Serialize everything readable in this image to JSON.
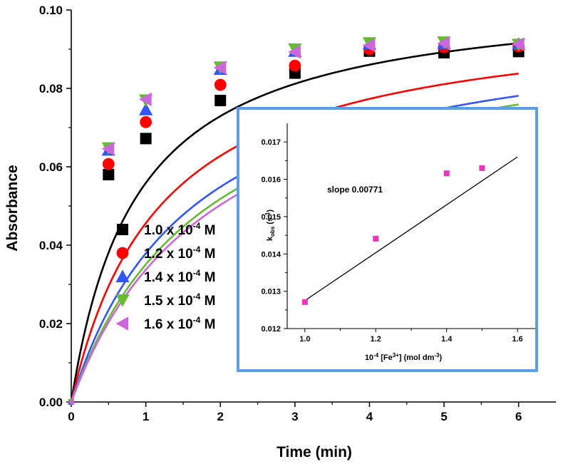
{
  "chart_data": [
    {
      "type": "scatter",
      "xlabel": "Time (min)",
      "ylabel": "Absorbance",
      "xlim": [
        0,
        6.5
      ],
      "ylim": [
        0,
        0.1
      ],
      "x_ticks": [
        "0",
        "1",
        "2",
        "3",
        "4",
        "5",
        "6"
      ],
      "y_ticks": [
        "0.00",
        "0.02",
        "0.04",
        "0.06",
        "0.08",
        "0.10"
      ],
      "legend_position": "middle-left",
      "series": [
        {
          "name_base": "1.0 x 10",
          "name_exp": "-4",
          "name_unit": " M",
          "color": "#000000",
          "marker": "square",
          "x": [
            0,
            0.5,
            1,
            2,
            3,
            4,
            5,
            6
          ],
          "y": [
            0,
            0.058,
            0.0672,
            0.0769,
            0.0839,
            0.0895,
            0.0891,
            0.0894
          ],
          "fit_A": 0.1049,
          "fit_k": 1.14
        },
        {
          "name_base": "1.2 x 10",
          "name_exp": "-4",
          "name_unit": " M",
          "color": "#ff0000",
          "marker": "circle",
          "x": [
            0,
            0.5,
            1,
            2,
            3,
            4,
            5,
            6
          ],
          "y": [
            0,
            0.0607,
            0.0714,
            0.0809,
            0.0858,
            0.09,
            0.0905,
            0.0907
          ],
          "fit_A": 0.1006,
          "fit_k": 0.83
        },
        {
          "name_base": "1.4 x 10",
          "name_exp": "-4",
          "name_unit": " M",
          "color": "#3355ff",
          "marker": "triangle-up",
          "x": [
            0,
            0.5,
            1,
            2,
            3,
            4,
            5,
            6
          ],
          "y": [
            0,
            0.0643,
            0.0746,
            0.0849,
            0.0895,
            0.0914,
            0.0915,
            0.0913
          ],
          "fit_A": 0.0991,
          "fit_k": 0.62
        },
        {
          "name_base": "1.5 x 10",
          "name_exp": "-4",
          "name_unit": " M",
          "color": "#66bb33",
          "marker": "triangle-down",
          "x": [
            0,
            0.5,
            1,
            2,
            3,
            4,
            5,
            6
          ],
          "y": [
            0,
            0.0648,
            0.077,
            0.0854,
            0.09,
            0.0916,
            0.0918,
            0.0912
          ],
          "fit_A": 0.0989,
          "fit_k": 0.55
        },
        {
          "name_base": "1.6 x 10",
          "name_exp": "-4",
          "name_unit": " M",
          "color": "#cc66dd",
          "marker": "triangle-left",
          "x": [
            0,
            0.5,
            1,
            2,
            3,
            4,
            5,
            6
          ],
          "y": [
            0,
            0.0646,
            0.0772,
            0.0853,
            0.0893,
            0.091,
            0.0915,
            0.0913
          ],
          "fit_A": 0.0986,
          "fit_k": 0.52
        }
      ]
    },
    {
      "type": "scatter",
      "xlabel_prefix": "10",
      "xlabel_prefix_exp": "-4",
      "xlabel_mid": " [Fe",
      "xlabel_mid_exp": "3+",
      "xlabel_suffix": "] (mol dm",
      "xlabel_suffix_exp": "-3",
      "xlabel_end": ")",
      "ylabel_main": "k",
      "ylabel_sub": "obs",
      "ylabel_unit": " (s",
      "ylabel_unit_exp": "-1",
      "ylabel_end": ")",
      "xlim": [
        0.95,
        1.65
      ],
      "ylim": [
        0.012,
        0.0175
      ],
      "x_ticks": [
        "1.0",
        "1.2",
        "1.4",
        "1.6"
      ],
      "y_ticks": [
        "0.012",
        "0.013",
        "0.014",
        "0.015",
        "0.016",
        "0.017"
      ],
      "annotation": "slope 0.00771",
      "border_color": "#5aa0e6",
      "series": [
        {
          "color": "#ee33bb",
          "marker": "square",
          "x": [
            1.0,
            1.2,
            1.4,
            1.5
          ],
          "y": [
            0.01271,
            0.01441,
            0.01616,
            0.0163
          ]
        }
      ],
      "fit_line": {
        "x": [
          1.0,
          1.6
        ],
        "y": [
          0.01275,
          0.0166
        ]
      }
    }
  ]
}
